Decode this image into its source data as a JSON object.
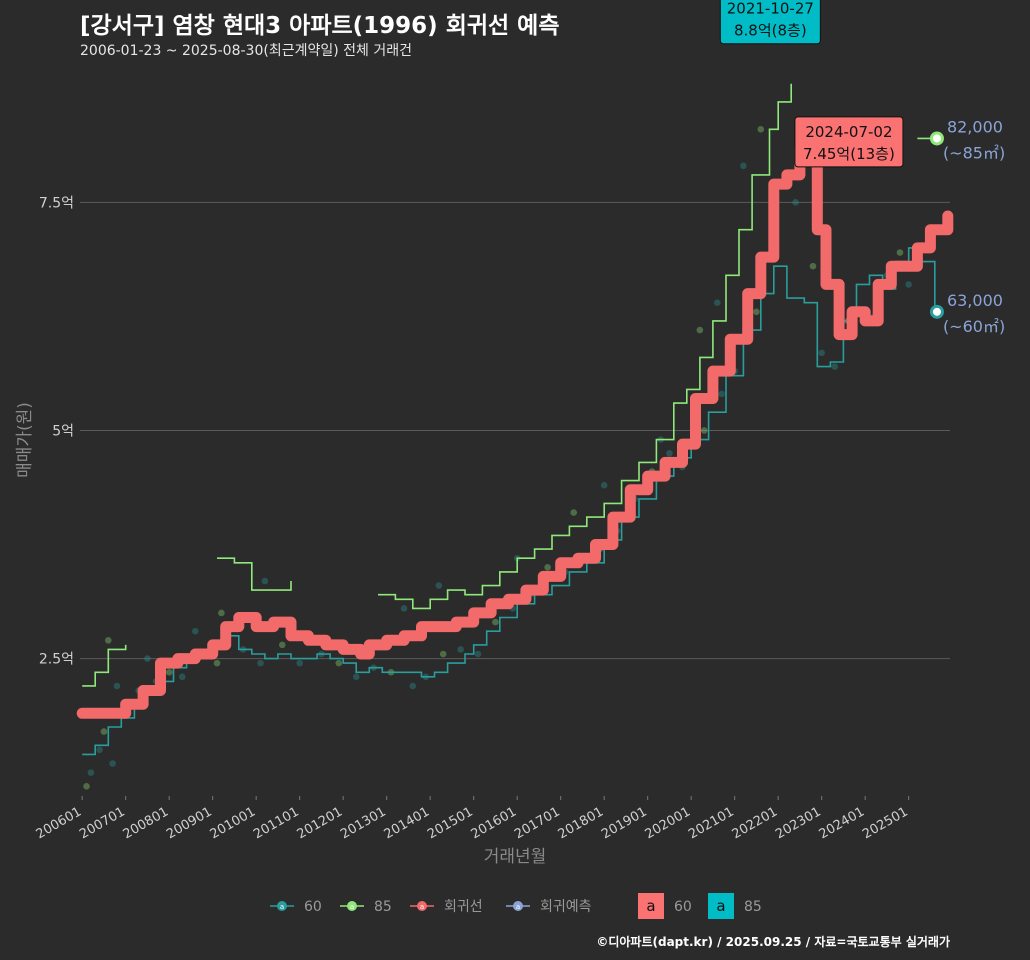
{
  "header": {
    "title": "[강서구] 염창 현대3 아파트(1996) 회귀선 예측",
    "subtitle": "2006-01-23 ~ 2025-08-30(최근계약일) 전체 거래건"
  },
  "caption": "©디아파트(dapt.kr) / 2025.09.25 / 자료=국토교통부 실거래가",
  "colors": {
    "background": "#2b2b2b",
    "grid": "#5a5a5a",
    "s60": "#2a9d9d",
    "s85": "#8fe87a",
    "reg": "#f26a6a",
    "pred": "#8aa4d6",
    "label85": "#00bcc6",
    "label60": "#fa7272",
    "annot": "#8aa4d6"
  },
  "chart_data": {
    "type": "line",
    "title": "[강서구] 염창 현대3 아파트(1996) 회귀선 예측",
    "xlabel": "거래년월",
    "ylabel": "매매가(원)",
    "xlim": [
      2005.95,
      2025.95
    ],
    "ylim": [
      0.95,
      8.95
    ],
    "y_unit": "억",
    "x_ticks": [
      {
        "label": "200601",
        "x": 2006.0
      },
      {
        "label": "200701",
        "x": 2007.0
      },
      {
        "label": "200801",
        "x": 2008.0
      },
      {
        "label": "200901",
        "x": 2009.0
      },
      {
        "label": "201001",
        "x": 2010.0
      },
      {
        "label": "201101",
        "x": 2011.0
      },
      {
        "label": "201201",
        "x": 2012.0
      },
      {
        "label": "201301",
        "x": 2013.0
      },
      {
        "label": "201401",
        "x": 2014.0
      },
      {
        "label": "201501",
        "x": 2015.0
      },
      {
        "label": "201601",
        "x": 2016.0
      },
      {
        "label": "201701",
        "x": 2017.0
      },
      {
        "label": "201801",
        "x": 2018.0
      },
      {
        "label": "201901",
        "x": 2019.0
      },
      {
        "label": "202001",
        "x": 2020.0
      },
      {
        "label": "202101",
        "x": 2021.0
      },
      {
        "label": "202201",
        "x": 2022.0
      },
      {
        "label": "202301",
        "x": 2023.0
      },
      {
        "label": "202401",
        "x": 2024.0
      },
      {
        "label": "202501",
        "x": 2025.0
      }
    ],
    "y_ticks": [
      {
        "label": "2.5억",
        "value": 2.5
      },
      {
        "label": "5억",
        "value": 5.0
      },
      {
        "label": "7.5억",
        "value": 7.5
      }
    ],
    "series": [
      {
        "name": "60",
        "kind": "line",
        "colorKey": "s60",
        "points": [
          [
            2006.0,
            1.45
          ],
          [
            2006.3,
            1.55
          ],
          [
            2006.6,
            1.75
          ],
          [
            2006.9,
            1.85
          ],
          [
            2007.2,
            2.0
          ],
          [
            2007.5,
            2.15
          ],
          [
            2007.8,
            2.25
          ],
          [
            2008.1,
            2.4
          ],
          [
            2008.4,
            2.5
          ],
          [
            2008.7,
            2.6
          ],
          [
            2009.0,
            2.7
          ],
          [
            2009.3,
            2.75
          ],
          [
            2009.6,
            2.6
          ],
          [
            2009.9,
            2.55
          ],
          [
            2010.2,
            2.5
          ],
          [
            2010.5,
            2.55
          ],
          [
            2010.8,
            2.5
          ],
          [
            2011.1,
            2.5
          ],
          [
            2011.4,
            2.55
          ],
          [
            2011.7,
            2.5
          ],
          [
            2012.0,
            2.45
          ],
          [
            2012.3,
            2.35
          ],
          [
            2012.6,
            2.4
          ],
          [
            2012.9,
            2.35
          ],
          [
            2013.2,
            2.35
          ],
          [
            2013.5,
            2.35
          ],
          [
            2013.8,
            2.3
          ],
          [
            2014.1,
            2.35
          ],
          [
            2014.4,
            2.45
          ],
          [
            2014.8,
            2.55
          ],
          [
            2015.0,
            2.65
          ],
          [
            2015.3,
            2.8
          ],
          [
            2015.6,
            2.95
          ],
          [
            2016.0,
            3.1
          ],
          [
            2016.4,
            3.2
          ],
          [
            2016.8,
            3.3
          ],
          [
            2017.2,
            3.45
          ],
          [
            2017.6,
            3.55
          ],
          [
            2018.0,
            3.8
          ],
          [
            2018.4,
            4.05
          ],
          [
            2018.8,
            4.25
          ],
          [
            2019.2,
            4.5
          ],
          [
            2019.6,
            4.7
          ],
          [
            2020.0,
            4.9
          ],
          [
            2020.4,
            5.2
          ],
          [
            2020.8,
            5.6
          ],
          [
            2021.2,
            6.1
          ],
          [
            2021.6,
            6.5
          ],
          [
            2021.9,
            6.8
          ],
          [
            2022.2,
            6.45
          ],
          [
            2022.6,
            6.4
          ],
          [
            2022.9,
            5.7
          ],
          [
            2023.2,
            5.75
          ],
          [
            2023.5,
            6.2
          ],
          [
            2023.8,
            6.6
          ],
          [
            2024.1,
            6.7
          ],
          [
            2024.4,
            6.55
          ],
          [
            2024.7,
            6.85
          ],
          [
            2025.0,
            7.0
          ],
          [
            2025.3,
            6.85
          ],
          [
            2025.6,
            6.3
          ]
        ]
      },
      {
        "name": "85",
        "kind": "line",
        "colorKey": "s85",
        "points": [
          [
            2006.0,
            2.2
          ],
          [
            2006.3,
            2.35
          ],
          [
            2006.6,
            2.6
          ],
          [
            2007.0,
            2.65
          ],
          [
            2009.1,
            3.6
          ],
          [
            2009.5,
            3.55
          ],
          [
            2009.9,
            3.25
          ],
          [
            2010.3,
            3.25
          ],
          [
            2010.8,
            3.35
          ],
          [
            2012.8,
            3.2
          ],
          [
            2013.2,
            3.15
          ],
          [
            2013.6,
            3.05
          ],
          [
            2014.0,
            3.15
          ],
          [
            2014.4,
            3.25
          ],
          [
            2014.8,
            3.2
          ],
          [
            2015.2,
            3.3
          ],
          [
            2015.6,
            3.45
          ],
          [
            2016.0,
            3.6
          ],
          [
            2016.4,
            3.7
          ],
          [
            2016.8,
            3.85
          ],
          [
            2017.2,
            3.95
          ],
          [
            2017.6,
            4.05
          ],
          [
            2018.0,
            4.2
          ],
          [
            2018.4,
            4.45
          ],
          [
            2018.8,
            4.65
          ],
          [
            2019.2,
            4.9
          ],
          [
            2019.6,
            5.3
          ],
          [
            2019.9,
            5.45
          ],
          [
            2020.2,
            5.8
          ],
          [
            2020.5,
            6.2
          ],
          [
            2020.8,
            6.7
          ],
          [
            2021.1,
            7.2
          ],
          [
            2021.4,
            7.8
          ],
          [
            2021.8,
            8.3
          ],
          [
            2022.0,
            8.6
          ],
          [
            2022.3,
            8.8
          ],
          [
            2025.2,
            8.2
          ],
          [
            2025.6,
            8.2
          ]
        ]
      },
      {
        "name": "회귀선",
        "kind": "line",
        "colorKey": "reg",
        "points": [
          [
            2006.0,
            1.9
          ],
          [
            2006.5,
            1.9
          ],
          [
            2007.0,
            2.0
          ],
          [
            2007.4,
            2.15
          ],
          [
            2007.8,
            2.45
          ],
          [
            2008.2,
            2.5
          ],
          [
            2008.6,
            2.55
          ],
          [
            2009.0,
            2.65
          ],
          [
            2009.3,
            2.85
          ],
          [
            2009.6,
            2.95
          ],
          [
            2010.0,
            2.85
          ],
          [
            2010.4,
            2.9
          ],
          [
            2010.8,
            2.75
          ],
          [
            2011.2,
            2.7
          ],
          [
            2011.6,
            2.65
          ],
          [
            2012.0,
            2.6
          ],
          [
            2012.4,
            2.55
          ],
          [
            2012.6,
            2.65
          ],
          [
            2013.0,
            2.7
          ],
          [
            2013.4,
            2.75
          ],
          [
            2013.8,
            2.85
          ],
          [
            2014.2,
            2.85
          ],
          [
            2014.6,
            2.9
          ],
          [
            2015.0,
            3.0
          ],
          [
            2015.4,
            3.1
          ],
          [
            2015.8,
            3.15
          ],
          [
            2016.2,
            3.25
          ],
          [
            2016.6,
            3.4
          ],
          [
            2017.0,
            3.55
          ],
          [
            2017.4,
            3.6
          ],
          [
            2017.8,
            3.75
          ],
          [
            2018.2,
            4.05
          ],
          [
            2018.6,
            4.35
          ],
          [
            2019.0,
            4.5
          ],
          [
            2019.4,
            4.65
          ],
          [
            2019.8,
            4.85
          ],
          [
            2020.1,
            5.35
          ],
          [
            2020.5,
            5.65
          ],
          [
            2020.9,
            6.0
          ],
          [
            2021.3,
            6.5
          ],
          [
            2021.6,
            6.9
          ],
          [
            2021.9,
            7.7
          ],
          [
            2022.2,
            7.8
          ],
          [
            2022.5,
            8.1
          ],
          [
            2022.7,
            8.0
          ],
          [
            2022.9,
            7.2
          ],
          [
            2023.1,
            6.6
          ],
          [
            2023.4,
            6.05
          ],
          [
            2023.7,
            6.3
          ],
          [
            2024.0,
            6.2
          ],
          [
            2024.3,
            6.6
          ],
          [
            2024.6,
            6.8
          ],
          [
            2024.9,
            6.8
          ],
          [
            2025.2,
            7.0
          ],
          [
            2025.5,
            7.2
          ],
          [
            2025.9,
            7.35
          ]
        ]
      }
    ],
    "scatter": [
      [
        2006.1,
        1.1
      ],
      [
        2006.2,
        1.25
      ],
      [
        2006.4,
        1.5
      ],
      [
        2006.5,
        1.7
      ],
      [
        2006.7,
        1.35
      ],
      [
        2006.8,
        2.2
      ],
      [
        2006.6,
        2.7
      ],
      [
        2007.3,
        2.15
      ],
      [
        2007.7,
        2.25
      ],
      [
        2008.0,
        2.35
      ],
      [
        2008.3,
        2.3
      ],
      [
        2008.6,
        2.8
      ],
      [
        2009.1,
        2.45
      ],
      [
        2009.7,
        2.6
      ],
      [
        2010.1,
        2.45
      ],
      [
        2010.6,
        2.65
      ],
      [
        2011.0,
        2.45
      ],
      [
        2011.5,
        2.55
      ],
      [
        2011.9,
        2.45
      ],
      [
        2012.3,
        2.3
      ],
      [
        2012.7,
        2.4
      ],
      [
        2013.1,
        2.35
      ],
      [
        2013.6,
        2.2
      ],
      [
        2013.9,
        2.3
      ],
      [
        2014.3,
        2.55
      ],
      [
        2014.7,
        2.6
      ],
      [
        2015.1,
        2.55
      ],
      [
        2015.5,
        2.9
      ],
      [
        2015.9,
        3.05
      ],
      [
        2016.3,
        3.2
      ],
      [
        2016.7,
        3.5
      ],
      [
        2017.1,
        3.45
      ],
      [
        2017.5,
        3.6
      ],
      [
        2017.9,
        3.7
      ],
      [
        2018.3,
        3.9
      ],
      [
        2018.7,
        4.25
      ],
      [
        2019.1,
        4.55
      ],
      [
        2019.5,
        4.75
      ],
      [
        2019.8,
        4.6
      ],
      [
        2020.3,
        5.0
      ],
      [
        2020.7,
        5.4
      ],
      [
        2021.0,
        5.65
      ],
      [
        2021.5,
        6.3
      ],
      [
        2021.8,
        6.9
      ],
      [
        2022.4,
        7.5
      ],
      [
        2022.8,
        6.8
      ],
      [
        2023.0,
        5.85
      ],
      [
        2023.3,
        5.7
      ],
      [
        2023.6,
        6.2
      ],
      [
        2024.2,
        6.25
      ],
      [
        2024.5,
        6.7
      ],
      [
        2024.8,
        6.95
      ],
      [
        2025.0,
        6.6
      ],
      [
        2016.0,
        3.6
      ],
      [
        2017.3,
        4.1
      ],
      [
        2018.0,
        4.4
      ],
      [
        2019.3,
        4.9
      ],
      [
        2020.2,
        6.1
      ],
      [
        2020.6,
        6.4
      ],
      [
        2021.2,
        7.9
      ],
      [
        2021.6,
        8.3
      ],
      [
        2014.2,
        3.3
      ],
      [
        2013.4,
        3.05
      ],
      [
        2009.2,
        3.0
      ],
      [
        2010.2,
        3.35
      ],
      [
        2007.5,
        2.5
      ]
    ],
    "annotations": [
      {
        "id": "hl85",
        "date": "2021-10-27",
        "price": "8.8억(8층)",
        "x": 2021.82,
        "y": 8.8,
        "colorKey": "label85"
      },
      {
        "id": "hl60",
        "date": "2024-07-02",
        "price": "7.45억(13층)",
        "x": 2024.5,
        "y": 7.45,
        "colorKey": "label60"
      },
      {
        "id": "end85",
        "value": "82,000",
        "size": "(~85㎡)",
        "x": 2025.65,
        "y": 8.2,
        "colorKey": "s85"
      },
      {
        "id": "end60",
        "value": "63,000",
        "size": "(~60㎡)",
        "x": 2025.65,
        "y": 6.3,
        "colorKey": "s60"
      }
    ],
    "legend": {
      "position": "bottom",
      "items": [
        {
          "label": "60",
          "colorKey": "s60",
          "kind": "line"
        },
        {
          "label": "85",
          "colorKey": "s85",
          "kind": "line"
        },
        {
          "label": "회귀선",
          "colorKey": "reg",
          "kind": "line"
        },
        {
          "label": "회귀예측",
          "colorKey": "pred",
          "kind": "line"
        },
        {
          "label": "60",
          "colorKey": "label60",
          "kind": "box",
          "glyph": "a"
        },
        {
          "label": "85",
          "colorKey": "label85",
          "kind": "box",
          "glyph": "a"
        }
      ]
    }
  },
  "axis": {
    "xlabel": "거래년월",
    "ylabel": "매매가(원)"
  }
}
